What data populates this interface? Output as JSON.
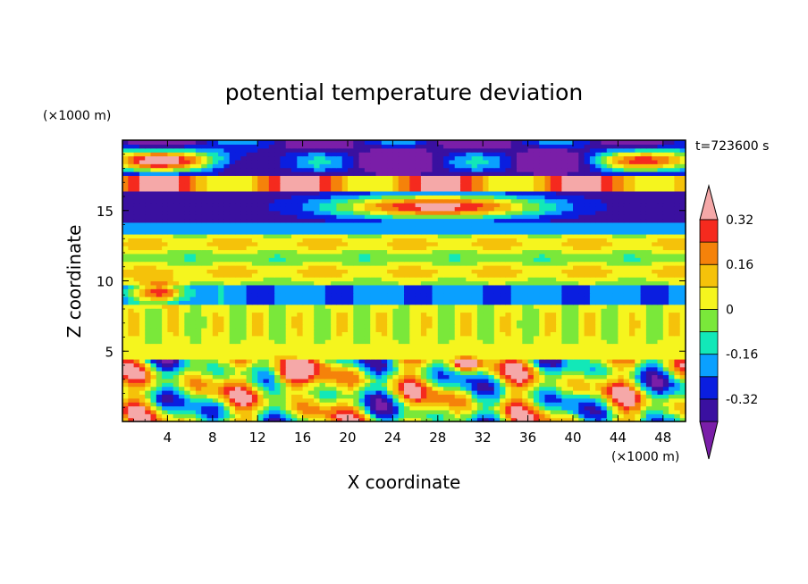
{
  "chart_data": {
    "type": "heatmap",
    "title": "potential temperature deviation",
    "xlabel": "X coordinate",
    "ylabel": "Z coordinate",
    "x_unit": "(×1000 m)",
    "y_unit": "(×1000 m)",
    "time_label": "t=723600 s",
    "xlim": [
      0,
      50
    ],
    "ylim": [
      0,
      20
    ],
    "x_ticks": [
      "4",
      "8",
      "12",
      "16",
      "20",
      "24",
      "28",
      "32",
      "36",
      "40",
      "44",
      "48"
    ],
    "y_ticks": [
      "5",
      "10",
      "15"
    ],
    "colorbar": {
      "levels": [
        -0.4,
        -0.32,
        -0.24,
        -0.16,
        -0.08,
        0,
        0.08,
        0.16,
        0.24,
        0.32,
        0.4
      ],
      "tick_labels": [
        "-0.32",
        "-0.16",
        "0",
        "0.16",
        "0.32"
      ],
      "colors": [
        "#7a1ea8",
        "#3a10a0",
        "#0a1ee0",
        "#0aa0ff",
        "#12e8b8",
        "#7ae83a",
        "#f5f51e",
        "#f5c20a",
        "#f5820a",
        "#f52a1e",
        "#f5a8a8"
      ],
      "extend": "both"
    }
  }
}
